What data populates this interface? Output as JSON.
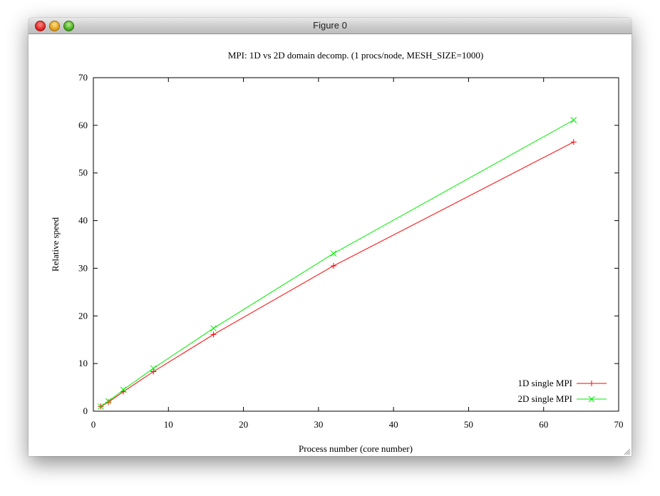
{
  "window": {
    "title": "Figure 0"
  },
  "chart_data": {
    "type": "line",
    "title": "MPI: 1D vs 2D domain decomp. (1 procs/node, MESH_SIZE=1000)",
    "xlabel": "Process number (core number)",
    "ylabel": "Relative speed",
    "xlim": [
      0,
      70
    ],
    "ylim": [
      0,
      70
    ],
    "xticks": [
      "0",
      "10",
      "20",
      "30",
      "40",
      "50",
      "60",
      "70"
    ],
    "yticks": [
      "0",
      "10",
      "20",
      "30",
      "40",
      "50",
      "60",
      "70"
    ],
    "grid": false,
    "legend_position": "bottom-right",
    "series": [
      {
        "name": "1D single MPI",
        "color": "#ff0000",
        "marker": "plus",
        "x": [
          1,
          2,
          4,
          8,
          16,
          32,
          64
        ],
        "y": [
          1.0,
          1.9,
          4.1,
          8.3,
          16.1,
          30.5,
          56.5
        ]
      },
      {
        "name": "2D single MPI",
        "color": "#00ee00",
        "marker": "cross",
        "x": [
          1,
          2,
          4,
          8,
          16,
          32,
          64
        ],
        "y": [
          1.0,
          2.1,
          4.5,
          9.0,
          17.4,
          33.1,
          61.1
        ]
      }
    ]
  }
}
